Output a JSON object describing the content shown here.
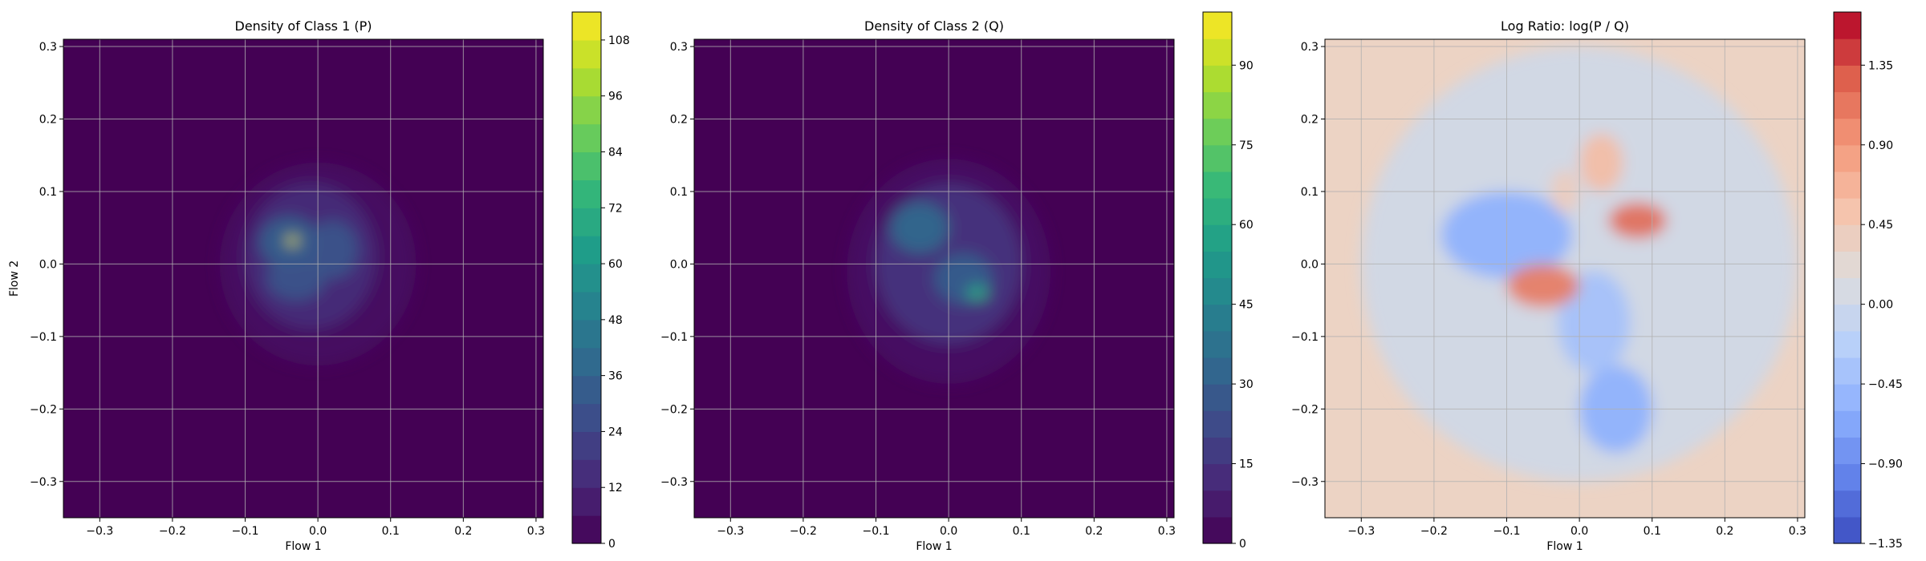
{
  "chart_data": [
    {
      "type": "heatmap",
      "title": "Density of Class 1 (P)",
      "xlabel": "Flow 1",
      "ylabel": "Flow 2",
      "xlim": [
        -0.35,
        0.31
      ],
      "ylim": [
        -0.35,
        0.31
      ],
      "xticks": [
        "−0.3",
        "−0.2",
        "−0.1",
        "0.0",
        "0.1",
        "0.2",
        "0.3"
      ],
      "yticks": [
        "−0.3",
        "−0.2",
        "−0.1",
        "0.0",
        "0.1",
        "0.2",
        "0.3"
      ],
      "grid": true,
      "colormap": "viridis",
      "background_color": "#440154",
      "colorbar": {
        "min": 0,
        "max": 114,
        "ticks": [
          "0",
          "12",
          "24",
          "36",
          "48",
          "60",
          "72",
          "84",
          "96",
          "108"
        ],
        "tick_values": [
          0,
          12,
          24,
          36,
          48,
          60,
          72,
          84,
          96,
          108
        ],
        "levels": 19
      },
      "blobs": [
        {
          "x": 0.0,
          "y": 0.0,
          "rx": 0.135,
          "ry": 0.14,
          "level": 5
        },
        {
          "x": -0.01,
          "y": 0.01,
          "rx": 0.09,
          "ry": 0.1,
          "level": 15
        },
        {
          "x": -0.04,
          "y": 0.03,
          "rx": 0.04,
          "ry": 0.035,
          "level": 35
        },
        {
          "x": 0.02,
          "y": 0.02,
          "rx": 0.035,
          "ry": 0.04,
          "level": 30
        },
        {
          "x": -0.03,
          "y": -0.02,
          "rx": 0.04,
          "ry": 0.03,
          "level": 30
        },
        {
          "x": -0.035,
          "y": 0.032,
          "rx": 0.008,
          "ry": 0.006,
          "level": 110
        }
      ]
    },
    {
      "type": "heatmap",
      "title": "Density of Class 2 (Q)",
      "xlabel": "Flow 1",
      "ylabel": "",
      "xlim": [
        -0.35,
        0.31
      ],
      "ylim": [
        -0.35,
        0.31
      ],
      "xticks": [
        "−0.3",
        "−0.2",
        "−0.1",
        "0.0",
        "0.1",
        "0.2",
        "0.3"
      ],
      "yticks": [
        "−0.3",
        "−0.2",
        "−0.1",
        "0.0",
        "0.1",
        "0.2",
        "0.3"
      ],
      "grid": true,
      "colormap": "viridis",
      "background_color": "#440154",
      "colorbar": {
        "min": 0,
        "max": 100,
        "ticks": [
          "0",
          "15",
          "30",
          "45",
          "60",
          "75",
          "90"
        ],
        "tick_values": [
          0,
          15,
          30,
          45,
          60,
          75,
          90
        ],
        "levels": 20
      },
      "blobs": [
        {
          "x": 0.0,
          "y": -0.01,
          "rx": 0.14,
          "ry": 0.155,
          "level": 5
        },
        {
          "x": 0.0,
          "y": 0.0,
          "rx": 0.1,
          "ry": 0.11,
          "level": 15
        },
        {
          "x": -0.04,
          "y": 0.05,
          "rx": 0.04,
          "ry": 0.035,
          "level": 35
        },
        {
          "x": 0.02,
          "y": -0.02,
          "rx": 0.04,
          "ry": 0.035,
          "level": 30
        },
        {
          "x": 0.04,
          "y": -0.04,
          "rx": 0.015,
          "ry": 0.01,
          "level": 60
        }
      ]
    },
    {
      "type": "heatmap",
      "title": "Log Ratio: log(P / Q)",
      "xlabel": "Flow 1",
      "ylabel": "",
      "xlim": [
        -0.35,
        0.31
      ],
      "ylim": [
        -0.35,
        0.31
      ],
      "xticks": [
        "−0.3",
        "−0.2",
        "−0.1",
        "0.0",
        "0.1",
        "0.2",
        "0.3"
      ],
      "yticks": [
        "−0.3",
        "−0.2",
        "−0.1",
        "0.0",
        "0.1",
        "0.2",
        "0.3"
      ],
      "grid": true,
      "colormap": "coolwarm",
      "background_color": "#ecd3c4",
      "colorbar": {
        "min": -1.35,
        "max": 1.65,
        "ticks": [
          "−1.35",
          "−0.90",
          "−0.45",
          "0.00",
          "0.45",
          "0.90",
          "1.35"
        ],
        "tick_values": [
          -1.35,
          -0.9,
          -0.45,
          0.0,
          0.45,
          0.9,
          1.35
        ],
        "levels": 20
      },
      "blobs": [
        {
          "x": 0.0,
          "y": 0.0,
          "rx": 0.3,
          "ry": 0.3,
          "level": 0.0
        },
        {
          "x": -0.1,
          "y": 0.04,
          "rx": 0.09,
          "ry": 0.06,
          "level": -0.6
        },
        {
          "x": 0.05,
          "y": -0.2,
          "rx": 0.05,
          "ry": 0.06,
          "level": -0.6
        },
        {
          "x": 0.02,
          "y": -0.08,
          "rx": 0.05,
          "ry": 0.07,
          "level": -0.4
        },
        {
          "x": -0.05,
          "y": -0.03,
          "rx": 0.05,
          "ry": 0.03,
          "level": 1.1
        },
        {
          "x": 0.08,
          "y": 0.06,
          "rx": 0.04,
          "ry": 0.025,
          "level": 1.2
        },
        {
          "x": 0.03,
          "y": 0.14,
          "rx": 0.03,
          "ry": 0.04,
          "level": 0.6
        },
        {
          "x": -0.02,
          "y": 0.1,
          "rx": 0.02,
          "ry": 0.03,
          "level": 0.4
        }
      ]
    }
  ]
}
